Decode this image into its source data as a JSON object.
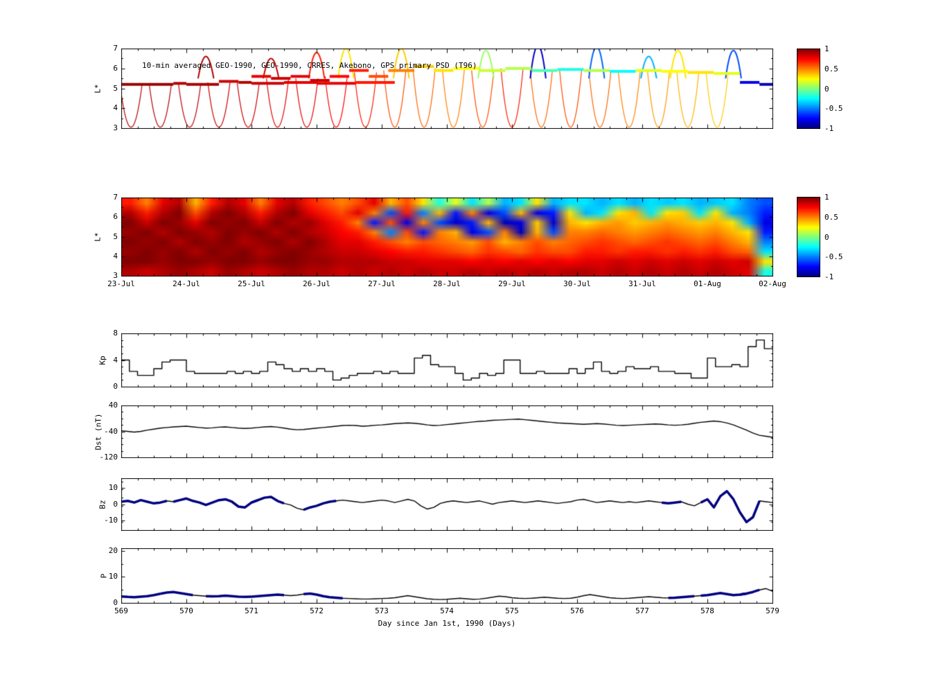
{
  "x_axis": {
    "xlim": [
      569,
      579
    ],
    "ticks": [
      569,
      570,
      571,
      572,
      573,
      574,
      575,
      576,
      577,
      578,
      579
    ],
    "minor_step": 0.25,
    "label": "Day since Jan 1st, 1990 (Days)"
  },
  "colorbar": {
    "vmin": -1,
    "vmax": 1,
    "tick_labels": [
      "1",
      "0.5",
      "0",
      "-0.5",
      "-1"
    ],
    "colormap": "jet"
  },
  "colors": {
    "background": "#ffffff",
    "axis": "#000000",
    "line": "#000000",
    "highlight": "#000080"
  },
  "chart_data": [
    {
      "id": "psd-orbits",
      "type": "scatter",
      "title": "10-min averaged GEO-1990, GEO-1990, CRRES, Akebono, GPS  primary PSD (T96)",
      "ylabel": "L*",
      "xlim": [
        569,
        579
      ],
      "ylim": [
        3,
        7
      ],
      "yticks": [
        3,
        4,
        5,
        6,
        7
      ],
      "color_value_range": [
        -1,
        1
      ],
      "geo_segments": [
        [
          569.0,
          569.8,
          5.2,
          0.95
        ],
        [
          569.8,
          570.0,
          5.25,
          0.9
        ],
        [
          570.0,
          570.5,
          5.2,
          0.92
        ],
        [
          570.5,
          570.8,
          5.35,
          0.85
        ],
        [
          570.8,
          571.0,
          5.3,
          0.9
        ],
        [
          571.0,
          571.3,
          5.6,
          0.8
        ],
        [
          571.3,
          571.6,
          5.5,
          0.85
        ],
        [
          571.6,
          571.9,
          5.6,
          0.8
        ],
        [
          571.9,
          572.2,
          5.4,
          0.85
        ],
        [
          572.2,
          572.5,
          5.6,
          0.75
        ],
        [
          572.5,
          572.8,
          5.9,
          0.7
        ],
        [
          572.8,
          573.1,
          5.6,
          0.6
        ],
        [
          573.1,
          573.5,
          5.9,
          0.5
        ],
        [
          573.5,
          573.8,
          6.1,
          0.35
        ],
        [
          573.8,
          574.1,
          5.9,
          0.3
        ],
        [
          574.1,
          574.5,
          6.0,
          0.25
        ],
        [
          574.5,
          574.9,
          5.9,
          0.15
        ],
        [
          574.9,
          575.3,
          6.0,
          0.1
        ],
        [
          575.3,
          575.7,
          5.9,
          -0.1
        ],
        [
          575.7,
          576.1,
          5.95,
          -0.2
        ],
        [
          576.1,
          576.5,
          5.9,
          0.1
        ],
        [
          576.5,
          576.9,
          5.85,
          -0.25
        ],
        [
          576.9,
          577.3,
          5.9,
          0.2
        ],
        [
          577.3,
          577.7,
          5.85,
          0.25
        ],
        [
          577.7,
          578.1,
          5.8,
          0.3
        ],
        [
          578.1,
          578.5,
          5.75,
          0.2
        ],
        [
          578.5,
          578.8,
          5.3,
          -0.8
        ],
        [
          578.8,
          579.0,
          5.2,
          -0.9
        ],
        [
          571.0,
          571.5,
          5.25,
          0.85
        ],
        [
          571.5,
          572.0,
          5.3,
          0.8
        ],
        [
          572.0,
          572.6,
          5.25,
          0.8
        ],
        [
          572.6,
          573.2,
          5.3,
          0.7
        ]
      ],
      "inbound_arcs": [
        [
          569.15,
          5.2,
          0.9
        ],
        [
          569.6,
          5.2,
          0.9
        ],
        [
          570.05,
          5.2,
          0.88
        ],
        [
          570.5,
          5.3,
          0.85
        ],
        [
          570.95,
          5.3,
          0.85
        ],
        [
          571.4,
          5.5,
          0.8
        ],
        [
          571.85,
          5.5,
          0.8
        ],
        [
          572.3,
          5.6,
          0.75
        ],
        [
          572.75,
          5.8,
          0.7
        ],
        [
          573.2,
          5.9,
          0.6
        ],
        [
          573.65,
          6.0,
          0.55
        ],
        [
          574.1,
          6.0,
          0.5
        ],
        [
          574.55,
          5.9,
          0.6
        ],
        [
          575.0,
          6.0,
          0.7
        ],
        [
          575.45,
          5.9,
          0.55
        ],
        [
          575.9,
          5.95,
          0.6
        ],
        [
          576.35,
          5.9,
          0.55
        ],
        [
          576.8,
          5.9,
          0.5
        ],
        [
          577.25,
          5.9,
          0.45
        ],
        [
          577.7,
          5.85,
          0.4
        ],
        [
          578.15,
          5.8,
          0.35
        ]
      ],
      "outbound_arcs": [
        [
          570.3,
          6.6,
          0.9
        ],
        [
          571.3,
          6.5,
          0.85
        ],
        [
          572.0,
          6.8,
          0.7
        ],
        [
          572.45,
          7.0,
          0.3
        ],
        [
          573.3,
          7.0,
          0.35
        ],
        [
          574.6,
          6.9,
          0.05
        ],
        [
          575.4,
          7.15,
          -0.85
        ],
        [
          576.3,
          7.1,
          -0.55
        ],
        [
          577.1,
          6.6,
          -0.4
        ],
        [
          577.55,
          6.9,
          0.3
        ],
        [
          578.4,
          6.9,
          -0.6
        ]
      ]
    },
    {
      "id": "psd-map",
      "type": "heatmap",
      "ylabel": "L*",
      "xlim": [
        569,
        579
      ],
      "ylim": [
        3,
        7
      ],
      "yticks": [
        3,
        4,
        5,
        6,
        7
      ],
      "xticklabels": [
        "23-Jul",
        "24-Jul",
        "25-Jul",
        "26-Jul",
        "27-Jul",
        "28-Jul",
        "29-Jul",
        "30-Jul",
        "31-Jul",
        "01-Aug",
        "02-Aug"
      ],
      "rows": 8,
      "cols": 40,
      "values": [
        [
          0.7,
          0.5,
          0.8,
          0.9,
          0.4,
          0.7,
          0.9,
          0.8,
          0.5,
          0.8,
          0.9,
          0.7,
          0.6,
          0.5,
          0.6,
          0.8,
          0.4,
          0.6,
          0.3,
          -0.2,
          0.2,
          -0.3,
          0.1,
          -0.4,
          -0.3,
          0.3,
          -0.4,
          -0.3,
          -0.3,
          -0.4,
          -0.3,
          -0.4,
          -0.3,
          -0.35,
          -0.3,
          -0.4,
          -0.35,
          -0.3,
          -0.5,
          -0.6
        ],
        [
          0.9,
          0.7,
          0.9,
          1.0,
          0.6,
          0.9,
          1.0,
          0.9,
          0.7,
          0.9,
          1.0,
          0.8,
          0.7,
          0.6,
          0.8,
          0.5,
          -0.6,
          0.7,
          -0.5,
          0.4,
          -0.7,
          0.5,
          -0.8,
          -0.6,
          0.4,
          -0.8,
          -0.7,
          0.3,
          -0.4,
          -0.3,
          0.3,
          0.4,
          -0.3,
          0.3,
          0.35,
          -0.3,
          0.3,
          -0.4,
          -0.5,
          -0.7
        ],
        [
          1.0,
          0.85,
          1.0,
          0.95,
          0.8,
          1.0,
          0.95,
          1.0,
          0.85,
          1.0,
          0.9,
          0.95,
          0.8,
          0.7,
          0.5,
          -0.7,
          0.6,
          -0.8,
          0.5,
          -0.6,
          -0.85,
          -0.7,
          0.4,
          -0.9,
          -0.8,
          0.35,
          -0.85,
          0.4,
          0.3,
          0.4,
          0.45,
          0.35,
          0.4,
          0.45,
          0.4,
          0.35,
          0.4,
          0.3,
          -0.4,
          -0.8
        ],
        [
          0.95,
          1.0,
          0.9,
          1.0,
          0.95,
          0.9,
          1.0,
          0.95,
          1.0,
          0.9,
          1.0,
          0.9,
          0.85,
          0.75,
          0.7,
          0.5,
          -0.5,
          0.6,
          -0.7,
          0.5,
          0.4,
          -0.8,
          -0.6,
          0.5,
          -0.9,
          0.4,
          -0.6,
          0.5,
          0.5,
          0.55,
          0.5,
          0.45,
          0.5,
          0.55,
          0.5,
          0.45,
          0.5,
          0.4,
          0.3,
          -0.7
        ],
        [
          1.0,
          0.95,
          1.0,
          0.9,
          1.0,
          0.95,
          1.0,
          0.9,
          0.95,
          1.0,
          0.9,
          1.0,
          0.9,
          0.8,
          0.8,
          0.7,
          0.6,
          0.5,
          0.6,
          0.55,
          0.5,
          0.45,
          0.6,
          0.4,
          0.5,
          0.6,
          0.5,
          0.55,
          0.6,
          0.65,
          0.6,
          0.55,
          0.6,
          0.65,
          0.6,
          0.55,
          0.6,
          0.5,
          0.4,
          -0.5
        ],
        [
          0.95,
          1.0,
          0.95,
          1.0,
          0.9,
          1.0,
          0.95,
          1.0,
          0.9,
          0.95,
          1.0,
          0.95,
          0.9,
          0.85,
          0.85,
          0.8,
          0.75,
          0.7,
          0.7,
          0.65,
          0.6,
          0.55,
          0.65,
          0.6,
          0.55,
          0.65,
          0.6,
          0.6,
          0.7,
          0.7,
          0.65,
          0.7,
          0.7,
          0.65,
          0.7,
          0.65,
          0.7,
          0.6,
          0.55,
          -0.3
        ],
        [
          1.0,
          1.0,
          0.95,
          1.0,
          1.0,
          0.95,
          1.0,
          1.0,
          0.95,
          1.0,
          1.0,
          0.95,
          0.95,
          0.9,
          0.9,
          0.9,
          0.85,
          0.85,
          0.8,
          0.8,
          0.8,
          0.75,
          0.8,
          0.75,
          0.8,
          0.75,
          0.8,
          0.75,
          0.8,
          0.8,
          0.85,
          0.8,
          0.85,
          0.8,
          0.85,
          0.8,
          0.85,
          0.8,
          0.85,
          0.3
        ],
        [
          0.9,
          0.85,
          0.9,
          0.95,
          0.9,
          0.85,
          0.95,
          0.9,
          0.85,
          0.9,
          0.95,
          0.9,
          0.9,
          0.85,
          0.9,
          0.85,
          0.9,
          0.85,
          0.9,
          0.85,
          0.85,
          0.9,
          0.85,
          0.9,
          0.85,
          0.9,
          0.85,
          0.9,
          0.9,
          0.85,
          0.9,
          0.85,
          0.9,
          0.85,
          0.9,
          0.85,
          0.9,
          0.85,
          0.8,
          -0.2
        ]
      ]
    },
    {
      "id": "kp",
      "type": "line",
      "style": "step",
      "ylabel": "Kp",
      "ylim": [
        0,
        8
      ],
      "yticks": [
        0,
        4,
        8
      ],
      "y_minor_step": 1,
      "x_start": 569,
      "dx": 0.125,
      "values": [
        4.0,
        2.3,
        1.7,
        1.7,
        2.7,
        3.7,
        4.0,
        4.0,
        2.3,
        2.0,
        2.0,
        2.0,
        2.0,
        2.3,
        2.0,
        2.3,
        2.0,
        2.3,
        3.7,
        3.3,
        2.7,
        2.3,
        2.7,
        2.3,
        2.7,
        2.3,
        1.0,
        1.3,
        1.7,
        2.0,
        2.0,
        2.3,
        2.0,
        2.3,
        2.0,
        2.0,
        4.3,
        4.7,
        3.3,
        3.0,
        3.0,
        2.0,
        1.0,
        1.3,
        2.0,
        1.7,
        2.0,
        4.0,
        4.0,
        2.0,
        2.0,
        2.3,
        2.0,
        2.0,
        2.0,
        2.7,
        2.0,
        2.7,
        3.7,
        2.3,
        2.0,
        2.3,
        3.0,
        2.7,
        2.7,
        3.0,
        2.3,
        2.3,
        2.0,
        2.0,
        1.3,
        1.3,
        4.3,
        3.0,
        3.0,
        3.3,
        3.0,
        6.0,
        7.0,
        5.7
      ]
    },
    {
      "id": "dst",
      "type": "line",
      "ylabel": "Dst (nT)",
      "ylim": [
        -120,
        40
      ],
      "yticks": [
        -120,
        -40,
        40
      ],
      "y_minor_step": 20,
      "x_start": 569,
      "dx": 0.1,
      "values": [
        -38,
        -40,
        -42,
        -40,
        -36,
        -33,
        -30,
        -28,
        -26,
        -25,
        -24,
        -26,
        -28,
        -30,
        -29,
        -27,
        -26,
        -28,
        -30,
        -31,
        -30,
        -28,
        -26,
        -25,
        -27,
        -30,
        -33,
        -35,
        -34,
        -32,
        -30,
        -28,
        -26,
        -24,
        -22,
        -21,
        -22,
        -24,
        -23,
        -21,
        -20,
        -18,
        -16,
        -15,
        -14,
        -15,
        -17,
        -20,
        -22,
        -21,
        -19,
        -17,
        -15,
        -13,
        -11,
        -9,
        -8,
        -6,
        -5,
        -4,
        -3,
        -2,
        -4,
        -6,
        -8,
        -10,
        -12,
        -14,
        -15,
        -16,
        -17,
        -18,
        -17,
        -16,
        -17,
        -19,
        -21,
        -22,
        -21,
        -20,
        -19,
        -18,
        -17,
        -18,
        -20,
        -21,
        -20,
        -18,
        -15,
        -12,
        -10,
        -8,
        -10,
        -14,
        -20,
        -28,
        -36,
        -45,
        -52,
        -55,
        -58
      ]
    },
    {
      "id": "bz",
      "type": "line",
      "ylabel": "Bz",
      "ylim": [
        -16,
        16
      ],
      "yticks": [
        -10,
        0,
        10
      ],
      "y_minor_step": 5,
      "x_start": 569,
      "dx": 0.1,
      "values": [
        1.5,
        2.0,
        1.0,
        2.5,
        1.5,
        0.5,
        1.0,
        2.0,
        1.5,
        2.5,
        3.5,
        2.0,
        1.0,
        -0.5,
        1.0,
        2.5,
        3.0,
        1.5,
        -1.5,
        -2.0,
        1.0,
        2.5,
        4.0,
        4.5,
        2.0,
        0.5,
        -0.5,
        -2.5,
        -3.5,
        -2.0,
        -1.0,
        0.5,
        1.5,
        2.0,
        2.5,
        2.0,
        1.5,
        1.0,
        1.5,
        2.0,
        2.5,
        2.0,
        1.0,
        2.0,
        3.0,
        2.0,
        -1.0,
        -3.0,
        -2.0,
        0.5,
        1.5,
        2.0,
        1.5,
        1.0,
        1.5,
        2.0,
        1.0,
        0.0,
        1.0,
        1.5,
        2.0,
        1.5,
        1.0,
        1.5,
        2.0,
        1.5,
        1.0,
        0.5,
        1.0,
        1.5,
        2.5,
        3.0,
        2.0,
        1.0,
        1.5,
        2.0,
        1.5,
        1.0,
        1.5,
        1.0,
        1.5,
        2.0,
        1.5,
        1.0,
        0.5,
        1.0,
        1.5,
        0.0,
        -1.0,
        1.0,
        3.0,
        -2.0,
        5.0,
        8.0,
        3.0,
        -5.0,
        -11.0,
        -8.0,
        2.0,
        1.5,
        1.0
      ],
      "highlight_segments": [
        [
          569.0,
          569.65
        ],
        [
          569.85,
          570.35
        ],
        [
          570.5,
          571.0
        ],
        [
          571.1,
          571.45
        ],
        [
          571.9,
          572.25
        ],
        [
          577.4,
          577.55
        ],
        [
          578.0,
          578.7
        ]
      ]
    },
    {
      "id": "p",
      "type": "line",
      "ylabel": "P",
      "ylim": [
        0,
        21
      ],
      "yticks": [
        0,
        10,
        20
      ],
      "y_minor_step": 5,
      "x_start": 569,
      "dx": 0.1,
      "values": [
        2.5,
        2.3,
        2.2,
        2.4,
        2.6,
        3.0,
        3.5,
        4.0,
        4.2,
        3.8,
        3.4,
        3.0,
        2.8,
        2.6,
        2.5,
        2.6,
        2.8,
        2.6,
        2.4,
        2.3,
        2.4,
        2.6,
        2.8,
        3.0,
        3.2,
        3.0,
        2.8,
        3.0,
        3.4,
        3.6,
        3.2,
        2.6,
        2.2,
        2.0,
        1.8,
        1.7,
        1.6,
        1.5,
        1.5,
        1.6,
        1.7,
        1.8,
        2.0,
        2.4,
        2.8,
        2.4,
        2.0,
        1.6,
        1.4,
        1.3,
        1.4,
        1.6,
        1.8,
        1.6,
        1.4,
        1.5,
        1.8,
        2.2,
        2.6,
        2.4,
        2.0,
        1.8,
        1.7,
        1.8,
        2.0,
        2.2,
        2.0,
        1.8,
        1.7,
        1.8,
        2.2,
        2.8,
        3.2,
        2.8,
        2.4,
        2.0,
        1.8,
        1.7,
        1.8,
        2.0,
        2.2,
        2.4,
        2.2,
        2.0,
        1.9,
        2.0,
        2.2,
        2.4,
        2.6,
        2.8,
        3.0,
        3.4,
        3.8,
        3.4,
        3.0,
        3.2,
        3.6,
        4.2,
        5.0,
        5.5,
        4.5
      ],
      "highlight_segments": [
        [
          569.1,
          569.5
        ],
        [
          569.7,
          570.0
        ],
        [
          570.4,
          570.9
        ],
        [
          571.05,
          571.4
        ],
        [
          571.9,
          572.3
        ],
        [
          577.5,
          577.7
        ],
        [
          578.0,
          578.5
        ],
        [
          578.6,
          578.75
        ]
      ]
    }
  ]
}
